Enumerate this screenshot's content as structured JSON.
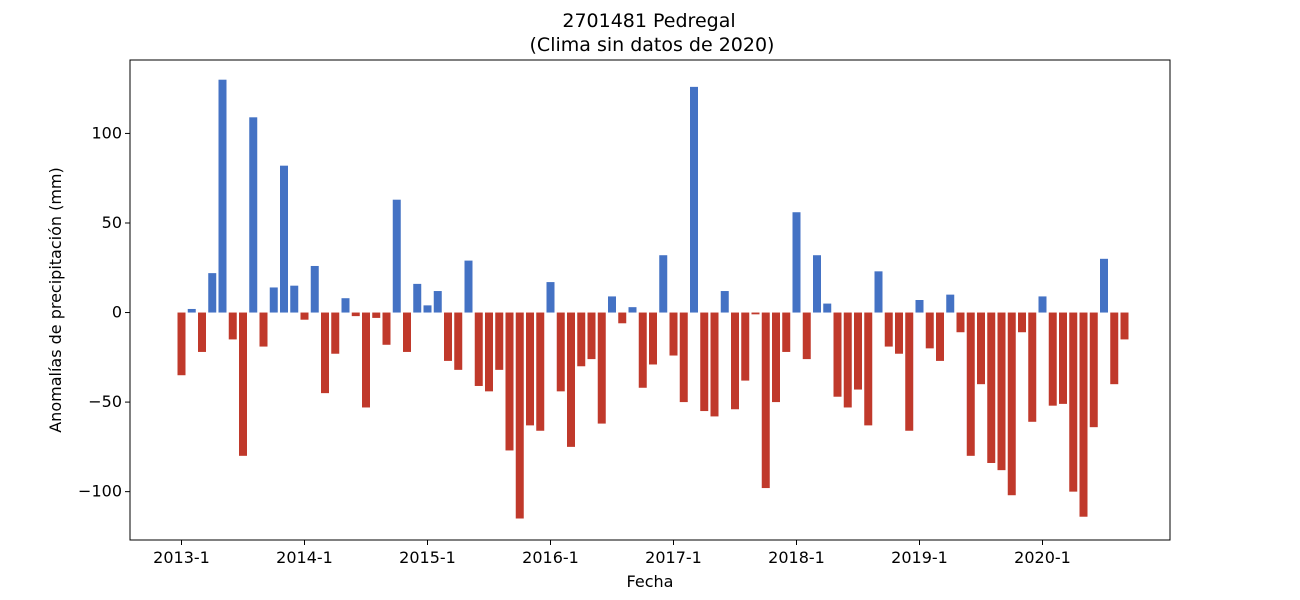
{
  "chart_data": {
    "type": "bar",
    "title": "2701481 Pedregal",
    "subtitle": "(Clima sin datos de 2020)",
    "xlabel": "Fecha",
    "ylabel": "Anomalías de precipitación (mm)",
    "ylim": [
      -127,
      141
    ],
    "yticks": [
      -100,
      -50,
      0,
      50,
      100
    ],
    "xticks": [
      {
        "label": "2013-1",
        "index": 0
      },
      {
        "label": "2014-1",
        "index": 12
      },
      {
        "label": "2015-1",
        "index": 24
      },
      {
        "label": "2016-1",
        "index": 36
      },
      {
        "label": "2017-1",
        "index": 48
      },
      {
        "label": "2018-1",
        "index": 60
      },
      {
        "label": "2019-1",
        "index": 72
      },
      {
        "label": "2020-1",
        "index": 84
      }
    ],
    "grid": false,
    "positive_color": "#4472c4",
    "negative_color": "#c0392b",
    "values": [
      -35,
      2,
      -22,
      22,
      130,
      -15,
      -80,
      109,
      -19,
      14,
      82,
      15,
      -4,
      26,
      -45,
      -23,
      8,
      -2,
      -53,
      -3,
      -18,
      63,
      -22,
      16,
      4,
      12,
      -27,
      -32,
      29,
      -41,
      -44,
      -32,
      -77,
      -115,
      -63,
      -66,
      17,
      -44,
      -75,
      -30,
      -26,
      -62,
      9,
      -6,
      3,
      -42,
      -29,
      32,
      -24,
      -50,
      126,
      -55,
      -58,
      12,
      -54,
      -38,
      -1,
      -98,
      -50,
      -22,
      56,
      -26,
      32,
      5,
      -47,
      -53,
      -43,
      -63,
      23,
      -19,
      -23,
      -66,
      7,
      -20,
      -27,
      10,
      -11,
      -80,
      -40,
      -84,
      -88,
      -102,
      -11,
      -61,
      9,
      -52,
      -51,
      -100,
      -114,
      -64,
      30,
      -40,
      -15
    ]
  }
}
